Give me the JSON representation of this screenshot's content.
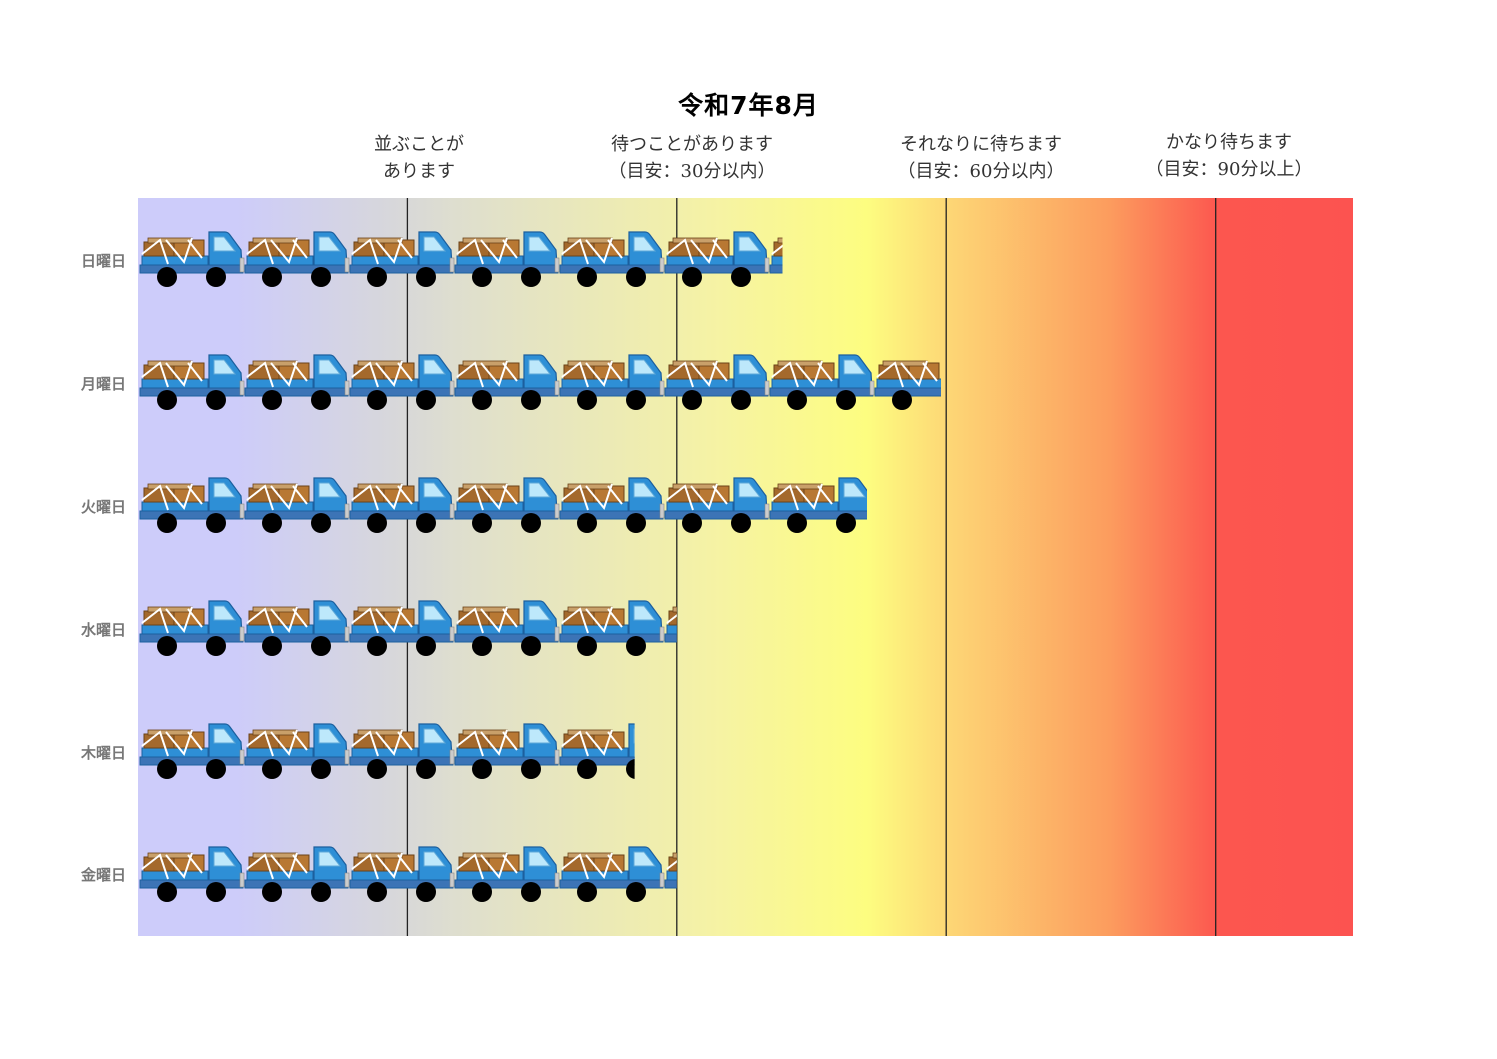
{
  "chart_data": {
    "type": "bar",
    "title": "令和7年8月",
    "categories": [
      "日曜日",
      "月曜日",
      "火曜日",
      "水曜日",
      "木曜日",
      "金曜日"
    ],
    "values": [
      6.1,
      7.6,
      6.9,
      5.1,
      4.7,
      5.1
    ],
    "xlim": [
      0,
      11.5
    ],
    "zones": [
      {
        "line1": "並ぶことが",
        "line2": "あります",
        "boundary": 2.55
      },
      {
        "line1": "待つことがあります",
        "line2": "（目安：30分以内）",
        "boundary": 5.1
      },
      {
        "line1": "それなりに待ちます",
        "line2": "（目安：60分以内）",
        "boundary": 7.65
      },
      {
        "line1": "かなり待ちます",
        "line2": "（目安：90分以上）",
        "boundary": 10.2
      }
    ],
    "colors": {
      "truck_body": "#2e8fd6",
      "truck_dark": "#1c5f9e",
      "window": "#bde8fb",
      "cargo": "#a4692c",
      "wheel": "#000000"
    }
  }
}
